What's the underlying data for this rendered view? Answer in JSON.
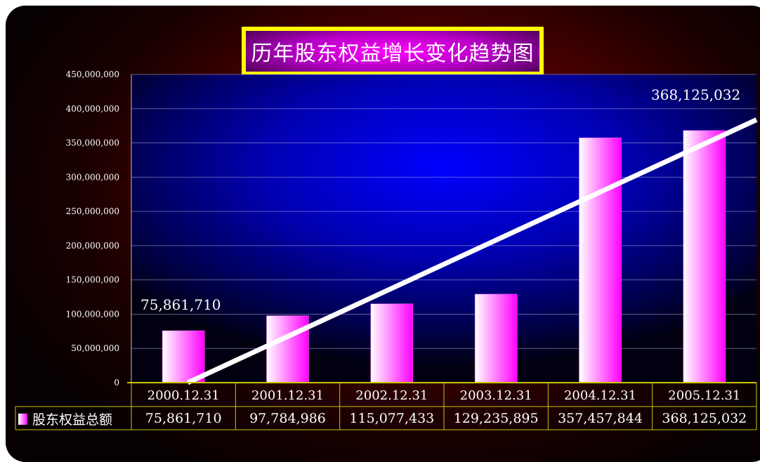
{
  "chart_data": {
    "type": "bar",
    "title": "历年股东权益增长变化趋势图",
    "categories": [
      "2000.12.31",
      "2001.12.31",
      "2002.12.31",
      "2003.12.31",
      "2004.12.31",
      "2005.12.31"
    ],
    "series": [
      {
        "name": "股东权益总额",
        "values": [
          75861710,
          97784986,
          115077433,
          129235895,
          357457844,
          368125032
        ]
      }
    ],
    "value_labels": [
      "75,861,710",
      "97,784,986",
      "115,077,433",
      "129,235,895",
      "357,457,844",
      "368,125,032"
    ],
    "annotations": [
      "75,861,710",
      "368,125,032"
    ],
    "ylim": [
      0,
      450000000
    ],
    "yticks": [
      "0",
      "50,000,000",
      "100,000,000",
      "150,000,000",
      "200,000,000",
      "250,000,000",
      "300,000,000",
      "350,000,000",
      "400,000,000",
      "450,000,000"
    ],
    "trendline": true,
    "grid": true,
    "legend": "data-table-left",
    "colors": {
      "bar_light": "#ffffff",
      "bar_dark": "#ff00ff",
      "trend": "#ffffff",
      "table_border": "#c8c800",
      "title_border": "#ffff00"
    }
  }
}
